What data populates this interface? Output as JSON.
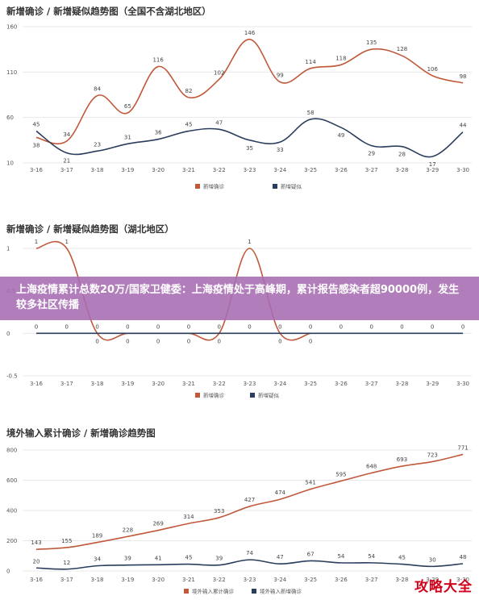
{
  "banner": {
    "text": "上海疫情累计总数20万/国家卫健委：上海疫情处于高峰期，累计报告感染者超90000例，发生较多社区传播"
  },
  "watermark": {
    "text": "攻略大全"
  },
  "colors": {
    "confirmed": "#c0583a",
    "suspected": "#2b3d5c",
    "banner": "#a66cb2",
    "watermark": "#d0021b"
  },
  "chart_data": [
    {
      "type": "line",
      "title": "新增确诊 / 新增疑似趋势图（全国不含湖北地区）",
      "categories": [
        "3-16",
        "3-17",
        "3-18",
        "3-19",
        "3-20",
        "3-21",
        "3-22",
        "3-23",
        "3-24",
        "3-25",
        "3-26",
        "3-27",
        "3-28",
        "3-29",
        "3-30"
      ],
      "yticks": [
        10,
        60,
        110,
        160
      ],
      "ylim": [
        10,
        160
      ],
      "series": [
        {
          "name": "新增确诊",
          "color": "#c0583a",
          "values": [
            38,
            34,
            84,
            65,
            116,
            82,
            102,
            146,
            99,
            114,
            118,
            135,
            128,
            106,
            98
          ]
        },
        {
          "name": "新增疑似",
          "color": "#2b3d5c",
          "values": [
            45,
            21,
            23,
            31,
            36,
            45,
            47,
            35,
            33,
            58,
            49,
            29,
            28,
            17,
            44
          ]
        }
      ]
    },
    {
      "type": "line",
      "title": "新增确诊 / 新增疑似趋势图（湖北地区）",
      "categories": [
        "3-16",
        "3-17",
        "3-18",
        "3-19",
        "3-20",
        "3-21",
        "3-22",
        "3-23",
        "3-24",
        "3-25",
        "3-26",
        "3-27",
        "3-28",
        "3-29",
        "3-30"
      ],
      "yticks": [
        -0.5,
        0,
        0.5,
        1
      ],
      "ylim": [
        -0.5,
        1
      ],
      "series": [
        {
          "name": "新增确诊",
          "color": "#c0583a",
          "values": [
            1,
            1,
            0,
            0,
            0,
            0,
            0,
            1,
            0,
            0,
            null,
            null,
            null,
            null,
            null
          ]
        },
        {
          "name": "新增疑似",
          "color": "#2b3d5c",
          "values": [
            0,
            0,
            0,
            0,
            0,
            0,
            0,
            0,
            0,
            0,
            0,
            0,
            0,
            0,
            0
          ]
        }
      ]
    },
    {
      "type": "line",
      "title": "境外输入累计确诊 / 新增确诊趋势图",
      "categories": [
        "3-16",
        "3-17",
        "3-18",
        "3-19",
        "3-20",
        "3-21",
        "3-22",
        "3-23",
        "3-24",
        "3-25",
        "3-26",
        "3-27",
        "3-28",
        "3-29",
        "3-30"
      ],
      "yticks": [
        0,
        200,
        400,
        600,
        800
      ],
      "ylim": [
        0,
        800
      ],
      "series": [
        {
          "name": "境外输入累计确诊",
          "color": "#c0583a",
          "values": [
            143,
            155,
            189,
            228,
            269,
            314,
            353,
            427,
            474,
            541,
            595,
            648,
            693,
            723,
            771
          ]
        },
        {
          "name": "境外输入新增确诊",
          "color": "#2b3d5c",
          "values": [
            20,
            12,
            34,
            39,
            41,
            45,
            39,
            74,
            47,
            67,
            54,
            54,
            45,
            30,
            48
          ]
        }
      ]
    }
  ]
}
